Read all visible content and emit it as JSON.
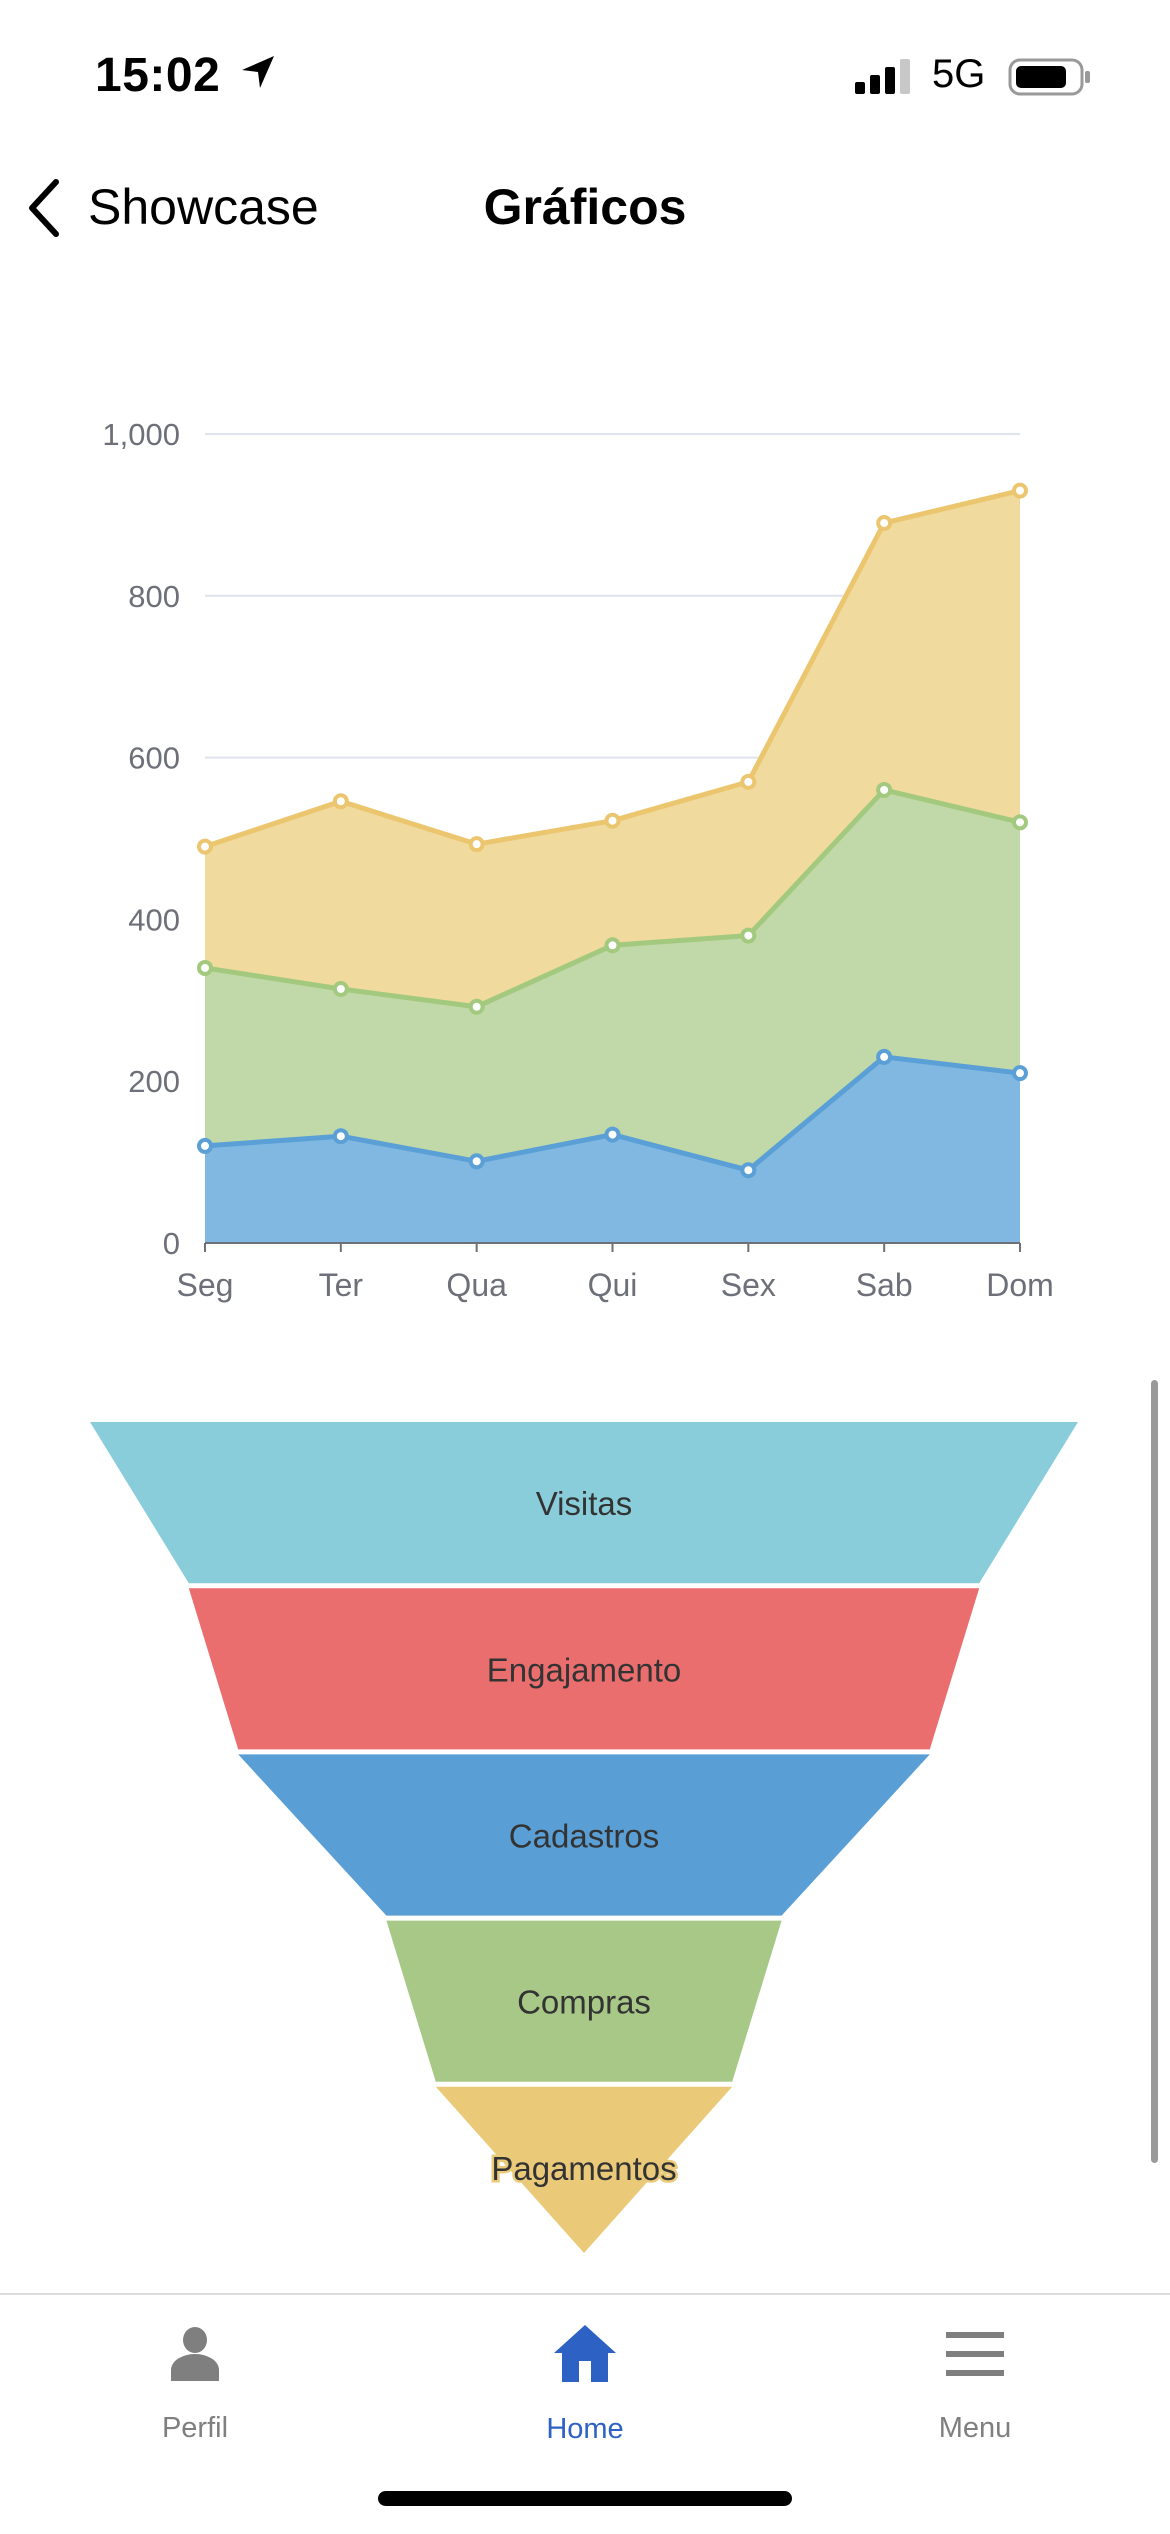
{
  "status_bar": {
    "time": "15:02",
    "network": "5G",
    "signal_bars": 3,
    "battery_level": 0.8
  },
  "nav": {
    "back_label": "Showcase",
    "title": "Gráficos"
  },
  "chart_data": [
    {
      "type": "area",
      "stacked": true,
      "categories": [
        "Seg",
        "Ter",
        "Qua",
        "Qui",
        "Sex",
        "Sab",
        "Dom"
      ],
      "ylim": [
        0,
        1000
      ],
      "yticks": [
        "0",
        "200",
        "400",
        "600",
        "800",
        "1,000"
      ],
      "ytick_values": [
        0,
        200,
        400,
        600,
        800,
        1000
      ],
      "grid": true,
      "series": [
        {
          "values": [
            120,
            132,
            101,
            134,
            90,
            230,
            210
          ],
          "line_color": "#5a9fd6",
          "fill_color": "#80b8e1"
        },
        {
          "values": [
            220,
            182,
            191,
            234,
            290,
            330,
            310
          ],
          "line_color": "#a3c97e",
          "fill_color": "#c1d9a8"
        },
        {
          "values": [
            150,
            232,
            201,
            154,
            190,
            330,
            410
          ],
          "line_color": "#ebc66f",
          "fill_color": "#f0da9e"
        }
      ]
    },
    {
      "type": "funnel",
      "categories": [
        "Visitas",
        "Engajamento",
        "Cadastros",
        "Compras",
        "Pagamentos"
      ],
      "values": [
        100,
        80,
        70,
        40,
        30
      ],
      "colors": [
        "#89cddb",
        "#eb6e6f",
        "#599fd5",
        "#a8c887",
        "#eaca79"
      ]
    }
  ],
  "tabbar": {
    "items": [
      {
        "label": "Perfil",
        "icon": "person-icon",
        "active": false
      },
      {
        "label": "Home",
        "icon": "home-icon",
        "active": true
      },
      {
        "label": "Menu",
        "icon": "menu-icon",
        "active": false
      }
    ],
    "active_color": "#2d62c4",
    "inactive_color": "#7f7f7f"
  }
}
